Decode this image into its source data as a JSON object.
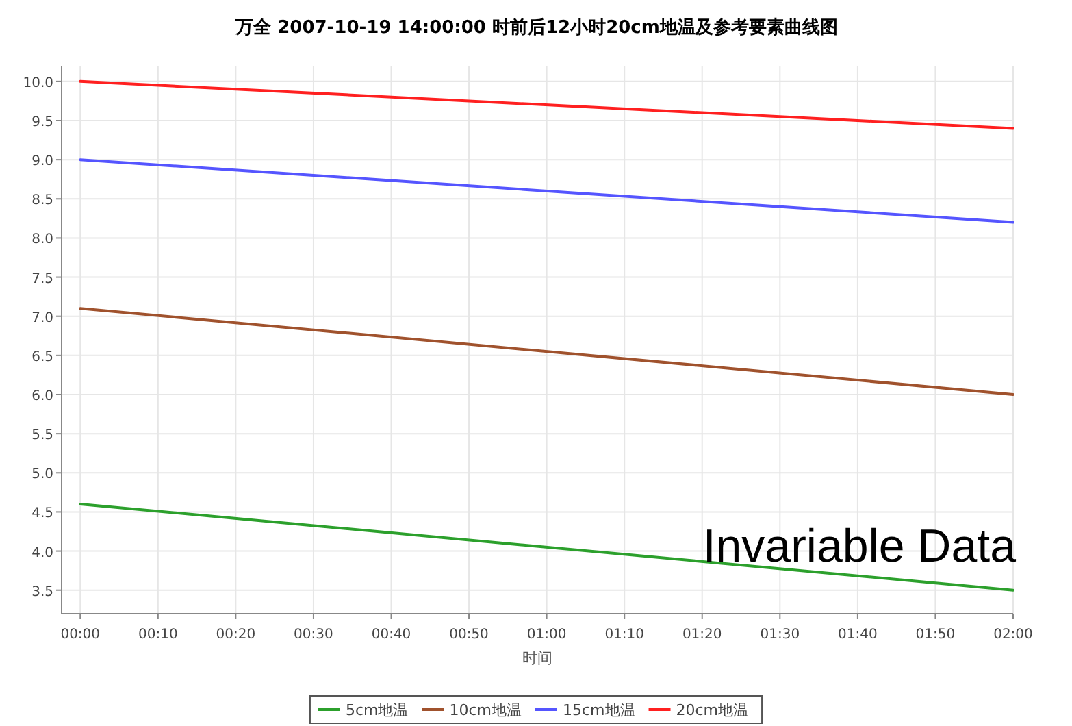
{
  "chart_data": {
    "type": "line",
    "title": "万全 2007-10-19 14:00:00 时前后12小时20cm地温及参考要素曲线图",
    "xlabel": "时间",
    "x": [
      0,
      2
    ],
    "series": [
      {
        "name": "5cm地温",
        "color": "#2ca02c",
        "values": [
          4.6,
          3.5
        ]
      },
      {
        "name": "10cm地温",
        "color": "#a0522d",
        "values": [
          7.1,
          6.0
        ]
      },
      {
        "name": "15cm地温",
        "color": "#5555ff",
        "values": [
          9.0,
          8.2
        ]
      },
      {
        "name": "20cm地温",
        "color": "#ff2020",
        "values": [
          10.0,
          9.4
        ]
      }
    ],
    "xlim": [
      -0.04,
      2.0
    ],
    "ylim": [
      3.2,
      10.2
    ],
    "xticks": [
      {
        "value": 0,
        "label": "00:00"
      },
      {
        "value": 0.1667,
        "label": "00:10"
      },
      {
        "value": 0.3333,
        "label": "00:20"
      },
      {
        "value": 0.5,
        "label": "00:30"
      },
      {
        "value": 0.6667,
        "label": "00:40"
      },
      {
        "value": 0.8333,
        "label": "00:50"
      },
      {
        "value": 1,
        "label": "01:00"
      },
      {
        "value": 1.1667,
        "label": "01:10"
      },
      {
        "value": 1.3333,
        "label": "01:20"
      },
      {
        "value": 1.5,
        "label": "01:30"
      },
      {
        "value": 1.6667,
        "label": "01:40"
      },
      {
        "value": 1.8333,
        "label": "01:50"
      },
      {
        "value": 2,
        "label": "02:00"
      }
    ],
    "yticks": [
      {
        "value": 3.5,
        "label": "3.5"
      },
      {
        "value": 4,
        "label": "4.0"
      },
      {
        "value": 4.5,
        "label": "4.5"
      },
      {
        "value": 5,
        "label": "5.0"
      },
      {
        "value": 5.5,
        "label": "5.5"
      },
      {
        "value": 6,
        "label": "6.0"
      },
      {
        "value": 6.5,
        "label": "6.5"
      },
      {
        "value": 7,
        "label": "7.0"
      },
      {
        "value": 7.5,
        "label": "7.5"
      },
      {
        "value": 8,
        "label": "8.0"
      },
      {
        "value": 8.5,
        "label": "8.5"
      },
      {
        "value": 9,
        "label": "9.0"
      },
      {
        "value": 9.5,
        "label": "9.5"
      },
      {
        "value": 10,
        "label": "10.0"
      }
    ],
    "grid": true,
    "legend": "bottom",
    "marker": "none",
    "line_style": "solid",
    "annotations": [
      "Invariable Data"
    ]
  }
}
